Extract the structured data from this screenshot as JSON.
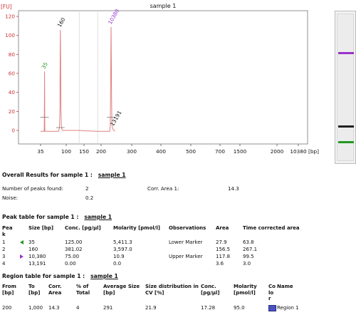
{
  "chart_data": {
    "type": "line",
    "title": "sample 1",
    "ylabel": "[FU]",
    "xlabel": "[bp]",
    "yticks": [
      "120",
      "100",
      "80",
      "60",
      "40",
      "20",
      "0"
    ],
    "ylim": [
      -13,
      120
    ],
    "xticks": [
      "35",
      "100",
      "150",
      "200",
      "300",
      "400",
      "500",
      "700",
      "1500",
      "2000",
      "10380"
    ],
    "xunit_label": "[bp]",
    "series": [
      {
        "values": [
          [
            0,
            -1
          ],
          [
            0.14,
            -1
          ],
          [
            0.145,
            5
          ],
          [
            0.15,
            30
          ],
          [
            0.155,
            62
          ],
          [
            0.16,
            30
          ],
          [
            0.165,
            5
          ],
          [
            0.17,
            -1
          ],
          [
            0.63,
            -1
          ],
          [
            0.7,
            -1
          ],
          [
            0.73,
            2
          ],
          [
            0.745,
            8
          ],
          [
            0.755,
            25
          ],
          [
            0.762,
            60
          ],
          [
            0.768,
            90
          ],
          [
            0.772,
            106
          ],
          [
            0.778,
            90
          ],
          [
            0.785,
            55
          ],
          [
            0.795,
            20
          ],
          [
            0.81,
            5
          ],
          [
            0.83,
            1
          ],
          [
            0.87,
            0
          ],
          [
            1.73,
            0
          ],
          [
            2.2,
            -0.5
          ],
          [
            2.8,
            -1
          ],
          [
            3.2,
            -1
          ],
          [
            3.28,
            -1
          ],
          [
            3.3,
            5
          ],
          [
            3.31,
            40
          ],
          [
            3.318,
            80
          ],
          [
            3.325,
            109
          ],
          [
            3.333,
            80
          ],
          [
            3.342,
            35
          ],
          [
            3.352,
            10
          ],
          [
            3.365,
            3
          ],
          [
            3.38,
            2
          ],
          [
            3.4,
            0.5
          ],
          [
            3.45,
            -1
          ]
        ]
      }
    ],
    "peak_labels": [
      {
        "text": "35",
        "x": 0.155,
        "y": 62,
        "color": "#229922"
      },
      {
        "text": "160",
        "x": 0.772,
        "y": 106,
        "color": "#111111"
      },
      {
        "text": "10380",
        "x": 3.325,
        "y": 109,
        "color": "#9933cc"
      },
      {
        "text": "13191",
        "x": 3.4,
        "y": 2,
        "color": "#111111"
      }
    ],
    "vlines": [
      1.73,
      2.8
    ],
    "grid": false,
    "gel_bands": [
      {
        "position": 0.26,
        "color": "#9933cc"
      },
      {
        "position": 0.76,
        "color": "#222222"
      },
      {
        "position": 0.87,
        "color": "#229922"
      }
    ]
  },
  "overall": {
    "title": "Overall Results for sample 1 :",
    "sample": "sample 1",
    "peaks_label": "Number of peaks found:",
    "peaks_value": "2",
    "corr_area_label": "Corr. Area 1:",
    "corr_area_value": "14.3",
    "noise_label": "Noise:",
    "noise_value": "0.2"
  },
  "peak_table": {
    "title": "Peak table for sample 1 :",
    "sample": "sample 1",
    "headers": [
      "Pea\nk",
      "Size [bp]",
      "Conc. [pg/µl]",
      "Molarity [pmol/l]",
      "Observations",
      "Area",
      "Time corrected area"
    ],
    "rows": [
      {
        "peak": "1",
        "marker": "green",
        "size": "35",
        "conc": "125.00",
        "molarity": "5,411.3",
        "obs": "Lower Marker",
        "area": "27.9",
        "tca": "63.8"
      },
      {
        "peak": "2",
        "marker": "",
        "size": "160",
        "conc": "381.02",
        "molarity": "3,597.0",
        "obs": "",
        "area": "156.5",
        "tca": "267.1"
      },
      {
        "peak": "3",
        "marker": "purple",
        "size": "10,380",
        "conc": "75.00",
        "molarity": "10.9",
        "obs": "Upper Marker",
        "area": "117.8",
        "tca": "99.5"
      },
      {
        "peak": "4",
        "marker": "",
        "size": "13,191",
        "conc": "0.00",
        "molarity": "0.0",
        "obs": "",
        "area": "3.6",
        "tca": "3.0"
      }
    ]
  },
  "region_table": {
    "title": "Region table for sample 1 :",
    "sample": "sample 1",
    "headers": [
      "From\n[bp]",
      "To\n[bp]",
      "Corr.\nArea",
      "% of\nTotal",
      "Average Size\n[bp]",
      "Size distribution in\nCV [%]",
      "Conc.\n[pg/µl]",
      "Molarity\n[pmol/l]",
      "Co\nlo\nr",
      "Name"
    ],
    "rows": [
      {
        "from": "200",
        "to": "1,000",
        "corr_area": "14.3",
        "pct": "4",
        "avg": "291",
        "cv": "21.9",
        "conc": "17.28",
        "molarity": "95.0",
        "color": "#4a52c0",
        "name": "Region 1"
      }
    ]
  },
  "colors": {
    "trace": "#e08080",
    "axis": "#cc3333",
    "marker_green": "#229922",
    "marker_purple": "#9933cc"
  }
}
